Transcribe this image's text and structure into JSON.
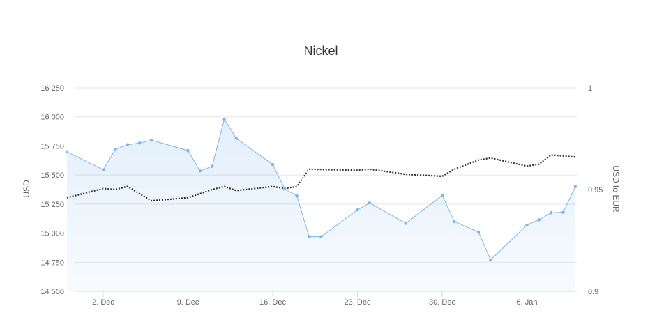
{
  "chart_data": {
    "type": "line",
    "title": "Nickel",
    "x_tick_labels": [
      "2. Dec",
      "9. Dec",
      "16. Dec",
      "23. Dec",
      "30. Dec",
      "6. Jan"
    ],
    "left_axis": {
      "label": "USD",
      "min": 14500,
      "max": 16250,
      "ticks": [
        "14 500",
        "14 750",
        "15 000",
        "15 250",
        "15 500",
        "15 750",
        "16 000",
        "16 250"
      ],
      "tick_values": [
        14500,
        14750,
        15000,
        15250,
        15500,
        15750,
        16000,
        16250
      ]
    },
    "right_axis": {
      "label": "USD to EUR",
      "min": 0.9,
      "max": 1.0,
      "ticks": [
        "0.9",
        "0.95",
        "1"
      ],
      "tick_values": [
        0.9,
        0.95,
        1.0
      ]
    },
    "series": [
      {
        "axis": "left",
        "style": "area-line",
        "color": "#7cb5ec",
        "points": [
          [
            "2019-11-29",
            15700
          ],
          [
            "2019-12-02",
            15545
          ],
          [
            "2019-12-03",
            15720
          ],
          [
            "2019-12-04",
            15760
          ],
          [
            "2019-12-05",
            15775
          ],
          [
            "2019-12-06",
            15800
          ],
          [
            "2019-12-09",
            15710
          ],
          [
            "2019-12-10",
            15535
          ],
          [
            "2019-12-11",
            15575
          ],
          [
            "2019-12-12",
            15980
          ],
          [
            "2019-12-13",
            15815
          ],
          [
            "2019-12-16",
            15590
          ],
          [
            "2019-12-17",
            15380
          ],
          [
            "2019-12-18",
            15320
          ],
          [
            "2019-12-19",
            14970
          ],
          [
            "2019-12-20",
            14970
          ],
          [
            "2019-12-23",
            15200
          ],
          [
            "2019-12-24",
            15260
          ],
          [
            "2019-12-27",
            15085
          ],
          [
            "2019-12-30",
            15325
          ],
          [
            "2019-12-31",
            15100
          ],
          [
            "2020-01-02",
            15010
          ],
          [
            "2020-01-03",
            14770
          ],
          [
            "2020-01-06",
            15070
          ],
          [
            "2020-01-07",
            15115
          ],
          [
            "2020-01-08",
            15175
          ],
          [
            "2020-01-09",
            15180
          ],
          [
            "2020-01-10",
            15400
          ]
        ]
      },
      {
        "axis": "right",
        "style": "dotted",
        "color": "#333333",
        "points": [
          [
            "2019-11-29",
            0.946
          ],
          [
            "2019-12-02",
            0.9505
          ],
          [
            "2019-12-03",
            0.95
          ],
          [
            "2019-12-04",
            0.9515
          ],
          [
            "2019-12-06",
            0.9445
          ],
          [
            "2019-12-09",
            0.946
          ],
          [
            "2019-12-10",
            0.948
          ],
          [
            "2019-12-11",
            0.95
          ],
          [
            "2019-12-12",
            0.9515
          ],
          [
            "2019-12-13",
            0.9495
          ],
          [
            "2019-12-16",
            0.9515
          ],
          [
            "2019-12-17",
            0.9505
          ],
          [
            "2019-12-18",
            0.9515
          ],
          [
            "2019-12-19",
            0.96
          ],
          [
            "2019-12-23",
            0.9595
          ],
          [
            "2019-12-24",
            0.96
          ],
          [
            "2019-12-27",
            0.9575
          ],
          [
            "2019-12-30",
            0.9565
          ],
          [
            "2019-12-31",
            0.96
          ],
          [
            "2020-01-02",
            0.9645
          ],
          [
            "2020-01-03",
            0.9655
          ],
          [
            "2020-01-06",
            0.9615
          ],
          [
            "2020-01-07",
            0.9625
          ],
          [
            "2020-01-08",
            0.967
          ],
          [
            "2020-01-09",
            0.9665
          ],
          [
            "2020-01-10",
            0.966
          ]
        ]
      }
    ],
    "grid": true,
    "legend": "none"
  }
}
